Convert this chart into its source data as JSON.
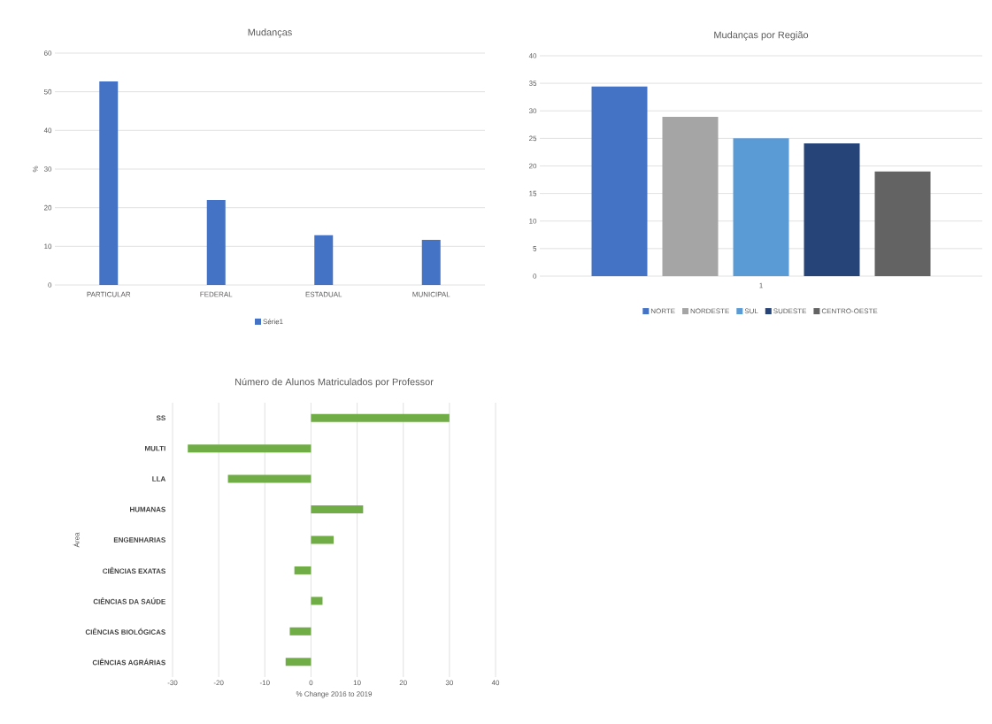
{
  "chart_data": [
    {
      "type": "bar",
      "title": "Mudanças",
      "ylabel": "%",
      "categories": [
        "PARTICULAR",
        "FEDERAL",
        "ESTADUAL",
        "MUNICIPAL"
      ],
      "series": [
        {
          "name": "Série1",
          "color": "#4472c4",
          "values": [
            52.7,
            22,
            12.9,
            11.7
          ]
        }
      ],
      "ylim": [
        0,
        60
      ],
      "yticks": [
        0,
        10,
        20,
        30,
        40,
        50,
        60
      ],
      "grid": "y",
      "legend": "bottom"
    },
    {
      "type": "bar",
      "title": "Mudanças por Região",
      "categories": [
        "1"
      ],
      "series": [
        {
          "name": "NORTE",
          "color": "#4472c4",
          "values": [
            34.4
          ]
        },
        {
          "name": "NORDESTE",
          "color": "#a5a5a5",
          "values": [
            28.9
          ]
        },
        {
          "name": "SUL",
          "color": "#5b9bd5",
          "values": [
            25
          ]
        },
        {
          "name": "SUDESTE",
          "color": "#264478",
          "values": [
            24.1
          ]
        },
        {
          "name": "CENTRO-OESTE",
          "color": "#636363",
          "values": [
            19
          ]
        }
      ],
      "ylim": [
        0,
        40
      ],
      "yticks": [
        0,
        5,
        10,
        15,
        20,
        25,
        30,
        35,
        40
      ],
      "grid": "y",
      "legend": "bottom"
    },
    {
      "type": "bar",
      "orientation": "horizontal",
      "title": "Número de Alunos Matriculados por Professor",
      "xlabel": "% Change 2016 to 2019",
      "ylabel": "Área",
      "categories": [
        "SS",
        "MULTI",
        "LLA",
        "HUMANAS",
        "ENGENHARIAS",
        "CIÊNCIAS EXATAS",
        "CIÊNCIAS DA SAÚDE",
        "CIÊNCIAS BIOLÓGICAS",
        "CIÊNCIAS AGRÁRIAS"
      ],
      "series": [
        {
          "color": "#70ad47",
          "values": [
            30,
            -26.7,
            -18,
            11.3,
            4.9,
            -3.6,
            2.5,
            -4.6,
            -5.5
          ]
        }
      ],
      "xlim": [
        -30,
        40
      ],
      "xticks": [
        -30,
        -20,
        -10,
        0,
        10,
        20,
        30,
        40
      ],
      "grid": "x"
    }
  ]
}
